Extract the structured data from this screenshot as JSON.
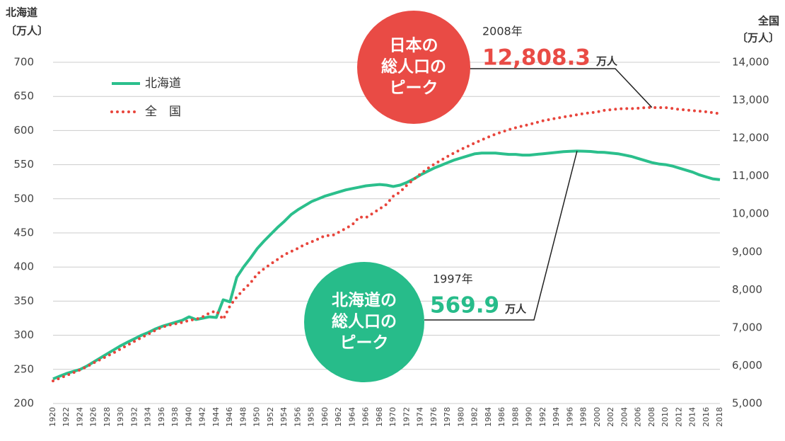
{
  "chart_data": {
    "type": "line",
    "y_title": [
      "北海道",
      "〔万人〕"
    ],
    "y2_title": [
      "全国",
      "〔万人〕"
    ],
    "xlim": [
      1920,
      2018
    ],
    "xticks": [
      1920,
      1922,
      1924,
      1926,
      1928,
      1930,
      1932,
      1934,
      1936,
      1938,
      1940,
      1942,
      1944,
      1946,
      1948,
      1950,
      1952,
      1954,
      1956,
      1958,
      1960,
      1962,
      1964,
      1966,
      1968,
      1970,
      1972,
      1974,
      1976,
      1978,
      1980,
      1982,
      1984,
      1986,
      1988,
      1990,
      1992,
      1994,
      1996,
      1998,
      2000,
      2002,
      2004,
      2006,
      2008,
      2010,
      2012,
      2014,
      2016,
      2018
    ],
    "ylim": [
      200,
      700
    ],
    "yticks": [
      200,
      250,
      300,
      350,
      400,
      450,
      500,
      550,
      600,
      650,
      700
    ],
    "y2lim": [
      5000,
      14000
    ],
    "y2ticks": [
      {
        "value": 5000,
        "label": "5,000"
      },
      {
        "value": 6000,
        "label": "6,000"
      },
      {
        "value": 7000,
        "label": "7,000"
      },
      {
        "value": 8000,
        "label": "8,000"
      },
      {
        "value": 9000,
        "label": "9,000"
      },
      {
        "value": 10000,
        "label": "10,000"
      },
      {
        "value": 11000,
        "label": "11,000"
      },
      {
        "value": 12000,
        "label": "12,000"
      },
      {
        "value": 13000,
        "label": "13,000"
      },
      {
        "value": 14000,
        "label": "14,000"
      }
    ],
    "grid": true,
    "legend": "upper left",
    "x": [
      1920,
      1921,
      1922,
      1923,
      1924,
      1925,
      1926,
      1927,
      1928,
      1929,
      1930,
      1931,
      1932,
      1933,
      1934,
      1935,
      1936,
      1937,
      1938,
      1939,
      1940,
      1941,
      1942,
      1943,
      1944,
      1945,
      1946,
      1947,
      1948,
      1949,
      1950,
      1951,
      1952,
      1953,
      1954,
      1955,
      1956,
      1957,
      1958,
      1959,
      1960,
      1961,
      1962,
      1963,
      1964,
      1965,
      1966,
      1967,
      1968,
      1969,
      1970,
      1971,
      1972,
      1973,
      1974,
      1975,
      1976,
      1977,
      1978,
      1979,
      1980,
      1981,
      1982,
      1983,
      1984,
      1985,
      1986,
      1987,
      1988,
      1989,
      1990,
      1991,
      1992,
      1993,
      1994,
      1995,
      1996,
      1997,
      1998,
      1999,
      2000,
      2001,
      2002,
      2003,
      2004,
      2005,
      2006,
      2007,
      2008,
      2009,
      2010,
      2011,
      2012,
      2013,
      2014,
      2015,
      2016,
      2017,
      2018
    ],
    "series": [
      {
        "name": "北海道",
        "color": "#2bbf8c",
        "style": "solid",
        "values": [
          236,
          240,
          244,
          247,
          250,
          255,
          261,
          267,
          273,
          279,
          285,
          290,
          295,
          300,
          304,
          309,
          313,
          316,
          319,
          322,
          327,
          323,
          325,
          327,
          326,
          352,
          349,
          385,
          400,
          413,
          427,
          438,
          448,
          458,
          467,
          477,
          484,
          490,
          496,
          500,
          504,
          507,
          510,
          513,
          515,
          517,
          519,
          520,
          521,
          520,
          518,
          520,
          524,
          529,
          535,
          540,
          545,
          549,
          553,
          557,
          560,
          563,
          566,
          567,
          567,
          567,
          566,
          565,
          565,
          564,
          564,
          565,
          566,
          567,
          568,
          569,
          569.5,
          569.9,
          569.7,
          569.3,
          568.3,
          568,
          567,
          566,
          564,
          562,
          559,
          556,
          553,
          551,
          550,
          548,
          545,
          542,
          539,
          535,
          532,
          529,
          528
        ]
      },
      {
        "name": "全　国",
        "color": "#e8453c",
        "style": "dotted",
        "axis": "y2",
        "values": [
          5596,
          5666,
          5739,
          5812,
          5888,
          5974,
          6074,
          6163,
          6254,
          6346,
          6445,
          6545,
          6643,
          6741,
          6830,
          6925,
          7011,
          7063,
          7101,
          7138,
          7193,
          7222,
          7288,
          7388,
          7443,
          7215,
          7575,
          7810,
          8000,
          8177,
          8412,
          8554,
          8681,
          8800,
          8928,
          9008,
          9094,
          9193,
          9264,
          9344,
          9430,
          9428,
          9518,
          9616,
          9718,
          9921,
          9904,
          10020,
          10133,
          10254,
          10467,
          10578,
          10760,
          10910,
          11057,
          11194,
          11309,
          11417,
          11519,
          11616,
          11706,
          11790,
          11873,
          11954,
          12031,
          12105,
          12166,
          12224,
          12275,
          12321,
          12361,
          12410,
          12457,
          12494,
          12527,
          12557,
          12586,
          12616,
          12649,
          12669,
          12693,
          12732,
          12749,
          12769,
          12779,
          12777,
          12790,
          12803,
          12808.3,
          12803,
          12806,
          12783,
          12759,
          12741,
          12724,
          12709,
          12693,
          12671,
          12644
        ]
      }
    ],
    "annotations": [
      {
        "lines": [
          "日本の",
          "総人口の",
          "ピーク"
        ],
        "color": "#e94b45",
        "year": 2008,
        "year_label": "2008年",
        "value": 12808.3,
        "label": "12,808.3",
        "unit": "万人",
        "axis": "y2"
      },
      {
        "lines": [
          "北海道の",
          "総人口の",
          "ピーク"
        ],
        "color": "#27bc8a",
        "year": 1997,
        "year_label": "1997年",
        "value": 569.9,
        "label": "569.9",
        "unit": "万人",
        "axis": "y"
      }
    ]
  }
}
